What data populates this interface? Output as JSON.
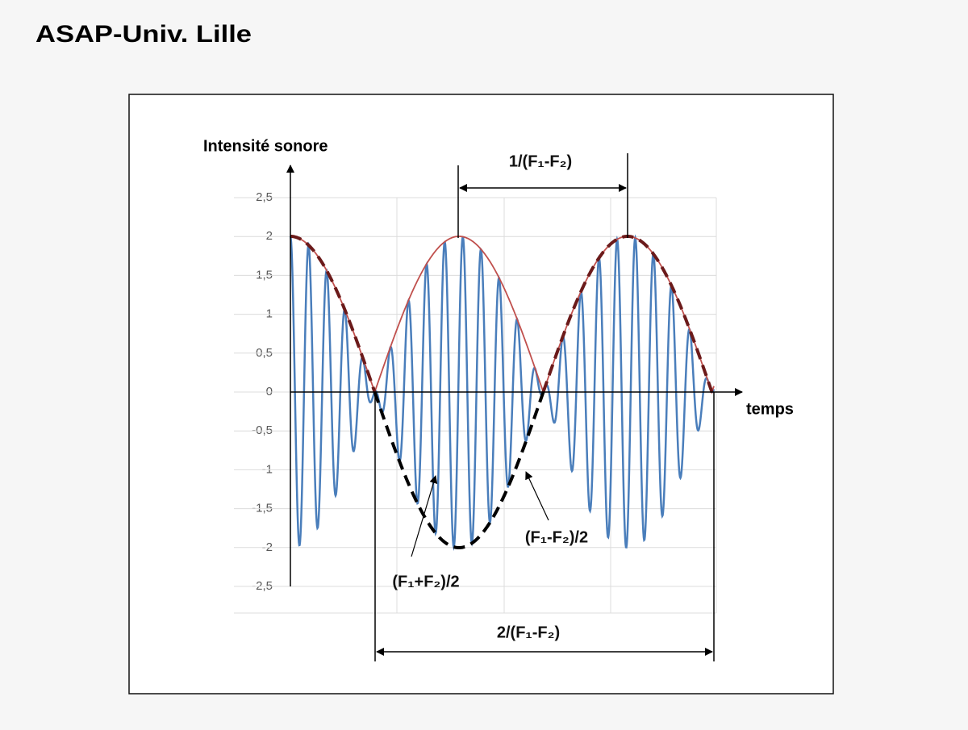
{
  "header": {
    "title": "ASAP-Univ. Lille"
  },
  "chart_data": {
    "type": "line",
    "y_label": "Intensité sonore",
    "x_label": "temps",
    "ylim": [
      -2.5,
      2.5
    ],
    "yticks": [
      {
        "value": -2.5,
        "label": "-2,5"
      },
      -2,
      {
        "value": -1.5,
        "label": "-1,5"
      },
      -1,
      {
        "value": -0.5,
        "label": "-0,5"
      },
      0,
      {
        "value": 0.5,
        "label": "0,5"
      },
      1,
      {
        "value": 1.5,
        "label": "1,5"
      },
      2,
      {
        "value": 2.5,
        "label": "2,5"
      }
    ],
    "grid": true,
    "colors": {
      "signal": "#4a7ebb",
      "envelope": "#c0504d",
      "dashed_upper": "#6b1a1a",
      "dashed_lower": "#000000"
    },
    "annotations": {
      "beat_period": "1/(F₁-F₂)",
      "envelope_period": "2/(F₁-F₂)",
      "envelope_frequency": "(F₁-F₂)/2",
      "carrier_frequency": "(F₁+F₂)/2"
    }
  }
}
